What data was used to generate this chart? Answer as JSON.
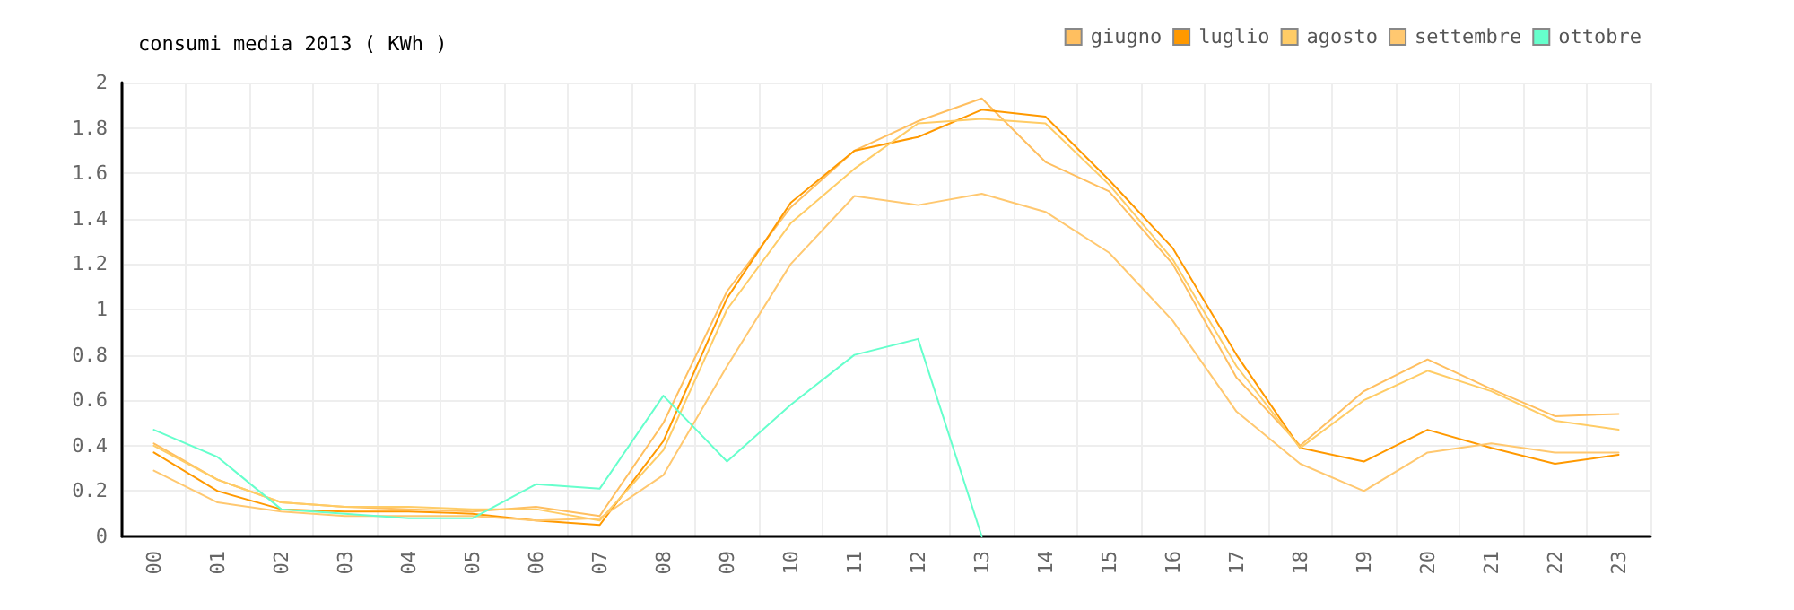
{
  "chart_data": {
    "type": "line",
    "title": "consumi media 2013 ( KWh )",
    "categories": [
      "00",
      "01",
      "02",
      "03",
      "04",
      "05",
      "06",
      "07",
      "08",
      "09",
      "10",
      "11",
      "12",
      "13",
      "14",
      "15",
      "16",
      "17",
      "18",
      "19",
      "20",
      "21",
      "22",
      "23"
    ],
    "series": [
      {
        "name": "giugno",
        "color": "#ffbf60",
        "values": [
          0.41,
          0.25,
          0.15,
          0.13,
          0.12,
          0.11,
          0.13,
          0.09,
          0.5,
          1.08,
          1.45,
          1.7,
          1.83,
          1.93,
          1.65,
          1.52,
          1.2,
          0.7,
          0.4,
          0.64,
          0.78,
          0.65,
          0.53,
          0.54
        ]
      },
      {
        "name": "luglio",
        "color": "#ff9900",
        "values": [
          0.37,
          0.2,
          0.12,
          0.11,
          0.11,
          0.1,
          0.07,
          0.05,
          0.42,
          1.05,
          1.47,
          1.7,
          1.76,
          1.88,
          1.85,
          1.57,
          1.27,
          0.8,
          0.39,
          0.33,
          0.47,
          0.39,
          0.32,
          0.36
        ]
      },
      {
        "name": "agosto",
        "color": "#ffcc66",
        "values": [
          0.4,
          0.25,
          0.15,
          0.13,
          0.13,
          0.12,
          0.12,
          0.07,
          0.38,
          1.0,
          1.38,
          1.62,
          1.82,
          1.84,
          1.82,
          1.55,
          1.22,
          0.75,
          0.39,
          0.6,
          0.73,
          0.64,
          0.51,
          0.47
        ]
      },
      {
        "name": "settembre",
        "color": "#ffc870",
        "values": [
          0.29,
          0.15,
          0.11,
          0.09,
          0.09,
          0.09,
          0.07,
          0.08,
          0.27,
          0.75,
          1.2,
          1.5,
          1.46,
          1.51,
          1.43,
          1.25,
          0.95,
          0.55,
          0.32,
          0.2,
          0.37,
          0.41,
          0.37,
          0.37
        ]
      },
      {
        "name": "ottobre",
        "color": "#66ffcc",
        "values": [
          0.47,
          0.35,
          0.12,
          0.1,
          0.08,
          0.08,
          0.23,
          0.21,
          0.62,
          0.33,
          0.58,
          0.8,
          0.87,
          0,
          null,
          null,
          null,
          null,
          null,
          null,
          null,
          null,
          null,
          null
        ]
      }
    ],
    "ylim": [
      0,
      2
    ],
    "yticks": [
      0,
      0.2,
      0.4,
      0.6,
      0.8,
      1,
      1.2,
      1.4,
      1.6,
      1.8,
      2
    ],
    "grid": true,
    "legend": "top right",
    "marker": "none",
    "line_style": "solid"
  }
}
